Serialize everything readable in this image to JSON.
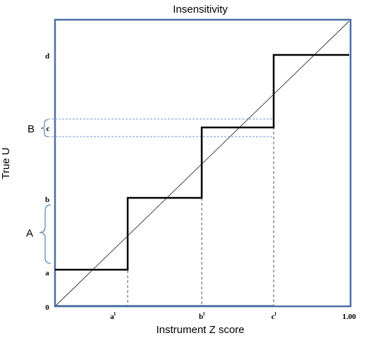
{
  "title": "Insensitivity",
  "x_axis": {
    "label": "Instrument Z score",
    "ticks": [
      {
        "id": "a",
        "base": "a",
        "sup": "l"
      },
      {
        "id": "b",
        "base": "b",
        "sup": "l"
      },
      {
        "id": "c",
        "base": "c",
        "sup": "l"
      },
      {
        "id": "end",
        "base": "1.00",
        "sup": ""
      }
    ]
  },
  "y_axis": {
    "label": "True U",
    "ticks": [
      {
        "id": "zero",
        "text": "0"
      },
      {
        "id": "a",
        "text": "a"
      },
      {
        "id": "b",
        "text": "b"
      },
      {
        "id": "c",
        "text": "c"
      },
      {
        "id": "d",
        "text": "d"
      }
    ]
  },
  "brackets": {
    "A": "A",
    "B": "B"
  },
  "colors": {
    "frame": "#4a6fa5",
    "bracket": "#5b8ac6",
    "dashed_blue": "#6b9bd1",
    "step": "#000000",
    "diagonal": "#333333",
    "dashed_gray": "#555555"
  }
}
